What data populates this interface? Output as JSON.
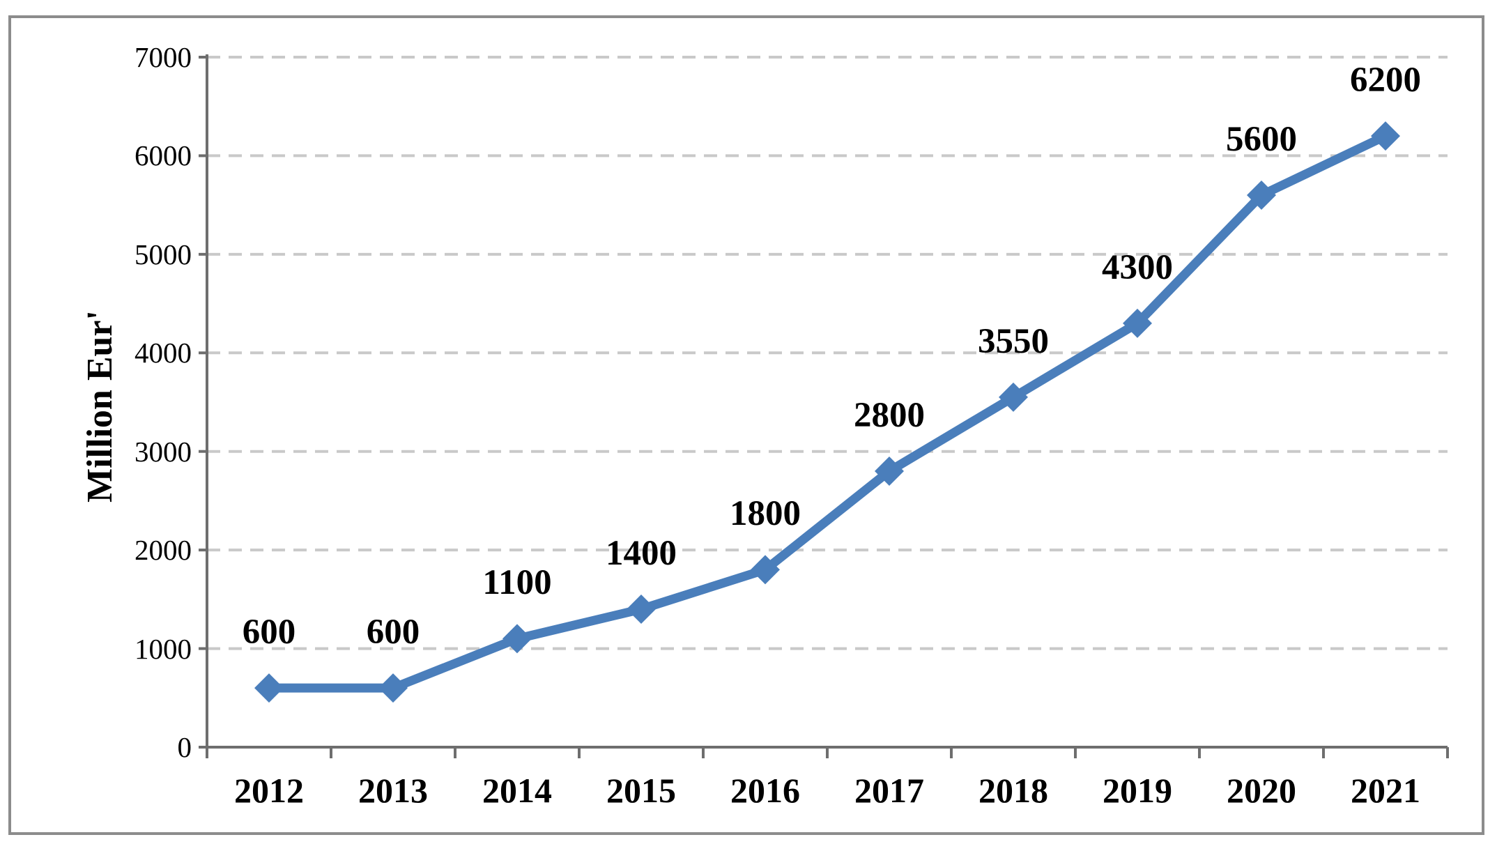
{
  "chart_data": {
    "type": "line",
    "title": "",
    "xlabel": "",
    "ylabel": "Million Eur'",
    "categories": [
      "2012",
      "2013",
      "2014",
      "2015",
      "2016",
      "2017",
      "2018",
      "2019",
      "2020",
      "2021"
    ],
    "series": [
      {
        "name": "Million Eur",
        "values": [
          600,
          600,
          1100,
          1400,
          1800,
          2800,
          3550,
          4300,
          5600,
          6200
        ]
      }
    ],
    "data_labels": [
      "600",
      "600",
      "1100",
      "1400",
      "1800",
      "2800",
      "3550",
      "4300",
      "5600",
      "6200"
    ],
    "ylim": [
      0,
      7000
    ],
    "ytick_step": 1000,
    "yticks": [
      0,
      1000,
      2000,
      3000,
      4000,
      5000,
      6000,
      7000
    ],
    "grid": "horizontal-dashed",
    "legend": "none",
    "marker": "diamond",
    "colors": {
      "line": "#4a7ebb",
      "marker": "#4a7ebb",
      "gridline": "#c9c9c9",
      "axis": "#6e6e6e",
      "frame_border": "#8c8c8c",
      "text": "#000000",
      "background": "#ffffff"
    }
  }
}
